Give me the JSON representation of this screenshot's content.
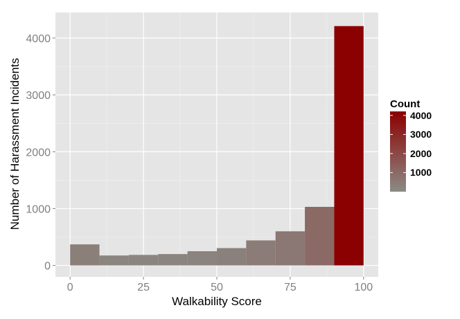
{
  "chart_data": {
    "type": "bar",
    "xlabel": "Walkability Score",
    "ylabel": "Number of Harassment Incidents",
    "xlim": [
      -5,
      105
    ],
    "ylim": [
      -200,
      4450
    ],
    "x_ticks": [
      "0",
      "25",
      "50",
      "75",
      "100"
    ],
    "y_ticks": [
      "0",
      "1000",
      "2000",
      "3000",
      "4000"
    ],
    "grid": true,
    "bins": [
      {
        "x0": 0,
        "x1": 10,
        "value": 370
      },
      {
        "x0": 10,
        "x1": 20,
        "value": 175
      },
      {
        "x0": 20,
        "x1": 30,
        "value": 185
      },
      {
        "x0": 30,
        "x1": 40,
        "value": 200
      },
      {
        "x0": 40,
        "x1": 50,
        "value": 250
      },
      {
        "x0": 50,
        "x1": 60,
        "value": 305
      },
      {
        "x0": 60,
        "x1": 70,
        "value": 440
      },
      {
        "x0": 70,
        "x1": 80,
        "value": 600
      },
      {
        "x0": 80,
        "x1": 90,
        "value": 1030
      },
      {
        "x0": 90,
        "x1": 100,
        "value": 4210
      }
    ],
    "legend": {
      "title": "Count",
      "position": "right",
      "labels": [
        "4000",
        "3000",
        "2000",
        "1000"
      ],
      "low_color": "#8b8b86",
      "high_color": "#8b0000"
    },
    "colors": {
      "panel": "#e5e5e5",
      "grid_major": "#ffffff",
      "grid_minor": "#f2f2f2",
      "tick_text": "#7f7f7f"
    }
  }
}
